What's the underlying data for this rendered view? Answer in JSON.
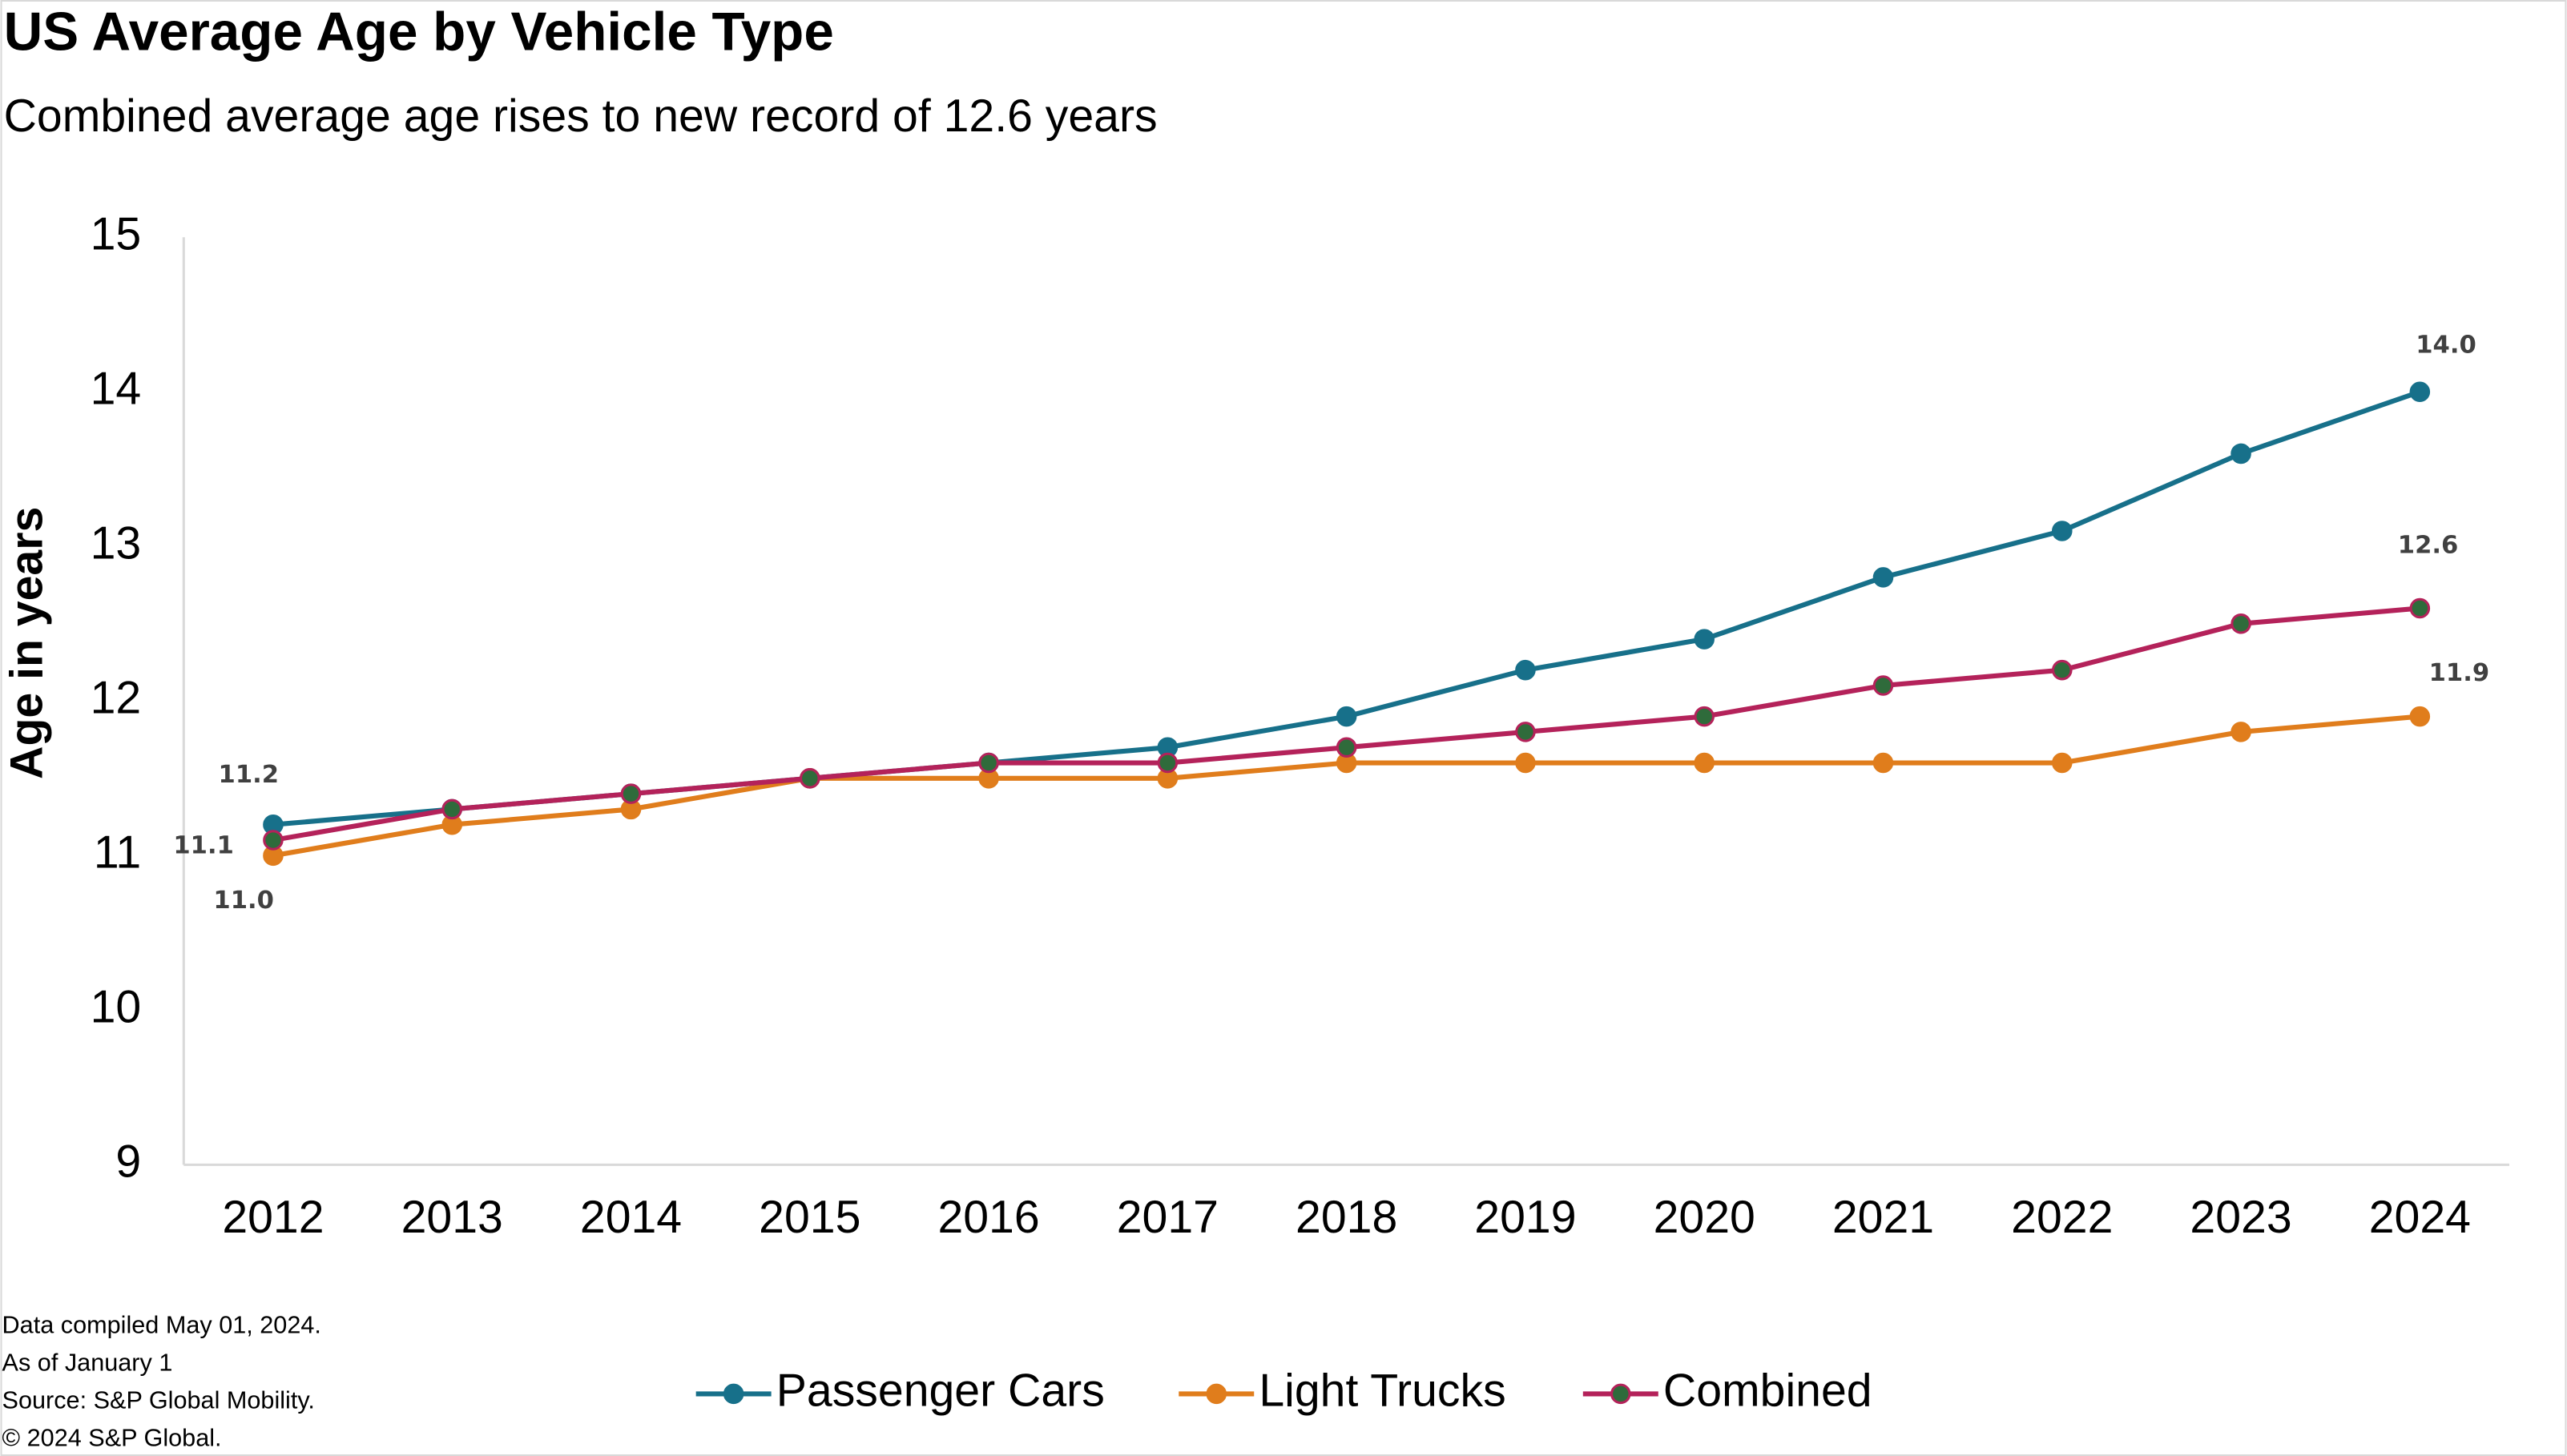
{
  "chart_data": {
    "type": "line",
    "title": "US Average Age by Vehicle Type",
    "subtitle": "Combined average age rises to new record of 12.6 years",
    "y_label": "Age in years",
    "categories": [
      "2012",
      "2013",
      "2014",
      "2015",
      "2016",
      "2017",
      "2018",
      "2019",
      "2020",
      "2021",
      "2022",
      "2023",
      "2024"
    ],
    "series": [
      {
        "name": "Passenger Cars",
        "color": "#17708a",
        "values": [
          11.2,
          11.3,
          11.4,
          11.5,
          11.6,
          11.7,
          11.9,
          12.2,
          12.4,
          12.8,
          13.1,
          13.6,
          14.0
        ],
        "value_labels": [
          "11.2",
          null,
          null,
          null,
          null,
          null,
          null,
          null,
          null,
          null,
          null,
          null,
          "14.0"
        ]
      },
      {
        "name": "Light Trucks",
        "color": "#e07d1c",
        "values": [
          11.0,
          11.2,
          11.3,
          11.5,
          11.5,
          11.5,
          11.6,
          11.6,
          11.6,
          11.6,
          11.6,
          11.8,
          11.9
        ],
        "value_labels": [
          "11.0",
          null,
          null,
          null,
          null,
          null,
          null,
          null,
          null,
          null,
          null,
          null,
          "11.9"
        ]
      },
      {
        "name": "Combined",
        "color": "#b4225a",
        "marker_color": "#2f6b3b",
        "values": [
          11.1,
          11.3,
          11.4,
          11.5,
          11.6,
          11.6,
          11.7,
          11.8,
          11.9,
          12.1,
          12.2,
          12.5,
          12.6
        ],
        "value_labels": [
          "11.1",
          null,
          null,
          null,
          null,
          null,
          null,
          null,
          null,
          null,
          null,
          null,
          "12.6"
        ]
      }
    ],
    "ylim": [
      9,
      15
    ],
    "yticks": [
      9,
      10,
      11,
      12,
      13,
      14,
      15
    ],
    "grid": false,
    "legend": "bottom",
    "notes": [
      "Data compiled May 01, 2024.",
      "As of January 1",
      "Source: S&P Global Mobility.",
      "© 2024 S&P Global."
    ]
  }
}
